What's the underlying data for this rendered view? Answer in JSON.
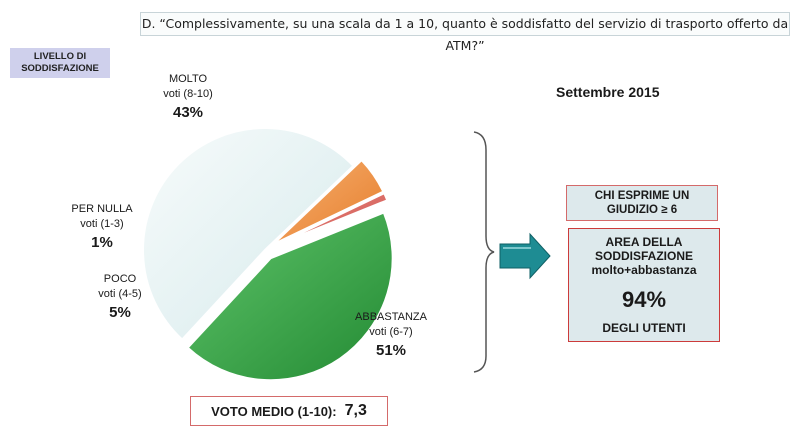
{
  "question": "D. “Complessivamente, su una scala da 1 a 10, quanto è soddisfatto del servizio di trasporto offerto da ATM?”",
  "level_label": [
    "LIVELLO DI",
    "SODDISFAZIONE"
  ],
  "period": "Settembre 2015",
  "chart_data": {
    "type": "pie",
    "slices": [
      {
        "name": "MOLTO",
        "sub": "voti (8-10)",
        "value": 43,
        "label": "43%",
        "color": "#3aa346",
        "exploded": true
      },
      {
        "name": "ABBASTANZA",
        "sub": "voti (6-7)",
        "value": 51,
        "label": "51%",
        "color": "#e8f3f4",
        "exploded": false
      },
      {
        "name": "POCO",
        "sub": "voti (4-5)",
        "value": 5,
        "label": "5%",
        "color": "#f2994a",
        "exploded": true
      },
      {
        "name": "PER NULLA",
        "sub": "voti (1-3)",
        "value": 1,
        "label": "1%",
        "color": "#e0706a",
        "exploded": true
      }
    ]
  },
  "giudizio": [
    "CHI ESPRIME UN",
    "GIUDIZIO ≥ 6"
  ],
  "area": {
    "line1": "AREA DELLA",
    "line2": "SODDISFAZIONE",
    "line3": "molto+abbastanza",
    "value": "94%",
    "bottom": "DEGLI UTENTI"
  },
  "voto": {
    "label": "VOTO MEDIO (1-10):",
    "value": "7,3"
  },
  "colors": {
    "arrow": "#1e8c93",
    "box_bg": "#dde9ec",
    "border": "#cc3b3b",
    "level_bg": "#cfd0ec"
  }
}
